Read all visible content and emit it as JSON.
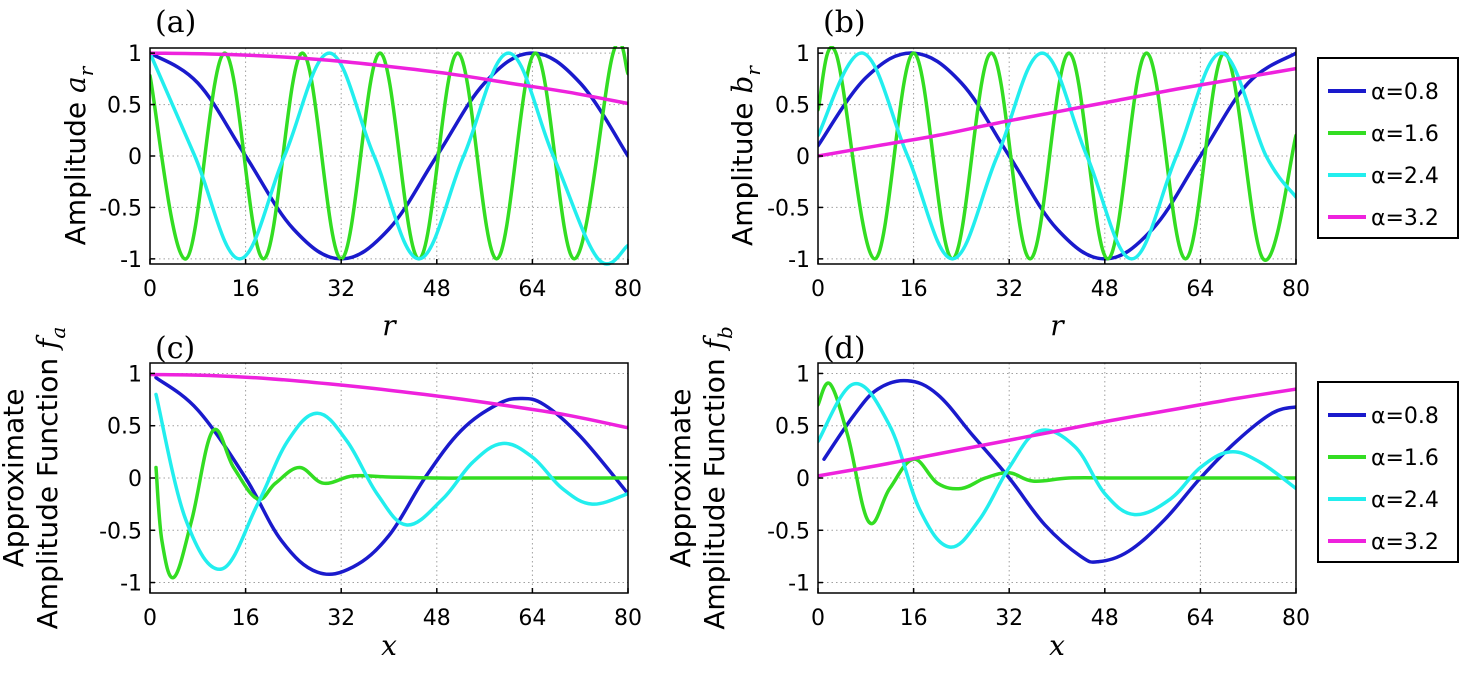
{
  "legend": {
    "entries": [
      {
        "label": "α=0.8",
        "color": "#1a1acc"
      },
      {
        "label": "α=1.6",
        "color": "#33dd22"
      },
      {
        "label": "α=2.4",
        "color": "#22eeee"
      },
      {
        "label": "α=3.2",
        "color": "#ee22dd"
      }
    ]
  },
  "chart_data": [
    {
      "id": "a",
      "type": "line",
      "panel_label": "(a)",
      "ylabel_lines": [
        "Amplitude a_r"
      ],
      "xlabel": "r",
      "xlim": [
        0,
        80
      ],
      "ylim": [
        -1.05,
        1.05
      ],
      "xticks": [
        "0",
        "16",
        "32",
        "48",
        "64",
        "80"
      ],
      "yticks": [
        "1",
        "0.5",
        "0",
        "-0.5",
        "-1"
      ],
      "grid": true,
      "series": [
        {
          "name": "α=0.8",
          "x": [
            0,
            8,
            16,
            24,
            32,
            40,
            48,
            56,
            64,
            72,
            80
          ],
          "y": [
            1.0,
            0.71,
            0.0,
            -0.71,
            -1.0,
            -0.71,
            0.0,
            0.71,
            1.0,
            0.71,
            0.0
          ]
        },
        {
          "name": "α=1.6",
          "x": [
            0,
            6,
            12.5,
            19,
            25.5,
            32,
            38.5,
            45,
            51.5,
            58,
            64.5,
            71,
            77.5,
            80
          ],
          "y": [
            0.78,
            -1.0,
            1.0,
            -1.0,
            1.0,
            -1.0,
            1.0,
            -1.0,
            1.0,
            -1.0,
            1.0,
            -1.0,
            1.0,
            0.8
          ]
        },
        {
          "name": "α=2.4",
          "x": [
            0,
            7.5,
            15,
            22.5,
            30,
            37.5,
            45,
            52.5,
            60,
            67.5,
            75,
            80
          ],
          "y": [
            1.0,
            0.0,
            -1.0,
            0.0,
            1.0,
            0.0,
            -1.0,
            0.0,
            1.0,
            0.0,
            -1.0,
            -0.87
          ]
        },
        {
          "name": "α=3.2",
          "x": [
            0,
            10,
            20,
            30,
            40,
            50,
            60,
            70,
            80
          ],
          "y": [
            1.0,
            0.992,
            0.97,
            0.93,
            0.87,
            0.8,
            0.71,
            0.62,
            0.51
          ]
        }
      ]
    },
    {
      "id": "b",
      "type": "line",
      "panel_label": "(b)",
      "ylabel_lines": [
        "Amplitude b_r"
      ],
      "xlabel": "r",
      "xlim": [
        0,
        80
      ],
      "ylim": [
        -1.05,
        1.05
      ],
      "xticks": [
        "0",
        "16",
        "32",
        "48",
        "64",
        "80"
      ],
      "yticks": [
        "1",
        "0.5",
        "0",
        "-0.5",
        "-1"
      ],
      "grid": true,
      "series": [
        {
          "name": "α=0.8",
          "x": [
            0,
            8,
            16,
            24,
            32,
            40,
            48,
            56,
            64,
            72,
            80
          ],
          "y": [
            0.1,
            0.76,
            1.0,
            0.71,
            0.0,
            -0.71,
            -1.0,
            -0.71,
            0.0,
            0.71,
            1.0
          ]
        },
        {
          "name": "α=1.6",
          "x": [
            0,
            3,
            9.5,
            16,
            22.5,
            29,
            35.5,
            42,
            48.5,
            55,
            61.5,
            68,
            74.5,
            80
          ],
          "y": [
            0.45,
            1.0,
            -1.0,
            1.0,
            -1.0,
            1.0,
            -1.0,
            1.0,
            -1.0,
            1.0,
            -1.0,
            1.0,
            -1.0,
            0.2
          ]
        },
        {
          "name": "α=2.4",
          "x": [
            0,
            7.5,
            15,
            22.5,
            30,
            37.5,
            45,
            52.5,
            60,
            67.5,
            75,
            80
          ],
          "y": [
            0.2,
            1.0,
            0.0,
            -1.0,
            0.0,
            1.0,
            0.0,
            -1.0,
            0.0,
            1.0,
            0.0,
            -0.4
          ]
        },
        {
          "name": "α=3.2",
          "x": [
            0,
            10,
            20,
            30,
            40,
            50,
            60,
            70,
            80
          ],
          "y": [
            0.0,
            0.1,
            0.2,
            0.32,
            0.43,
            0.54,
            0.65,
            0.75,
            0.85
          ]
        }
      ]
    },
    {
      "id": "c",
      "type": "line",
      "panel_label": "(c)",
      "ylabel_lines": [
        "Approximate",
        "Amplitude Function f_a"
      ],
      "xlabel": "x",
      "xlim": [
        0,
        80
      ],
      "ylim": [
        -1.1,
        1.1
      ],
      "xticks": [
        "0",
        "16",
        "32",
        "48",
        "64",
        "80"
      ],
      "yticks": [
        "1",
        "0.5",
        "0",
        "-0.5",
        "-1"
      ],
      "grid": true,
      "series": [
        {
          "name": "α=0.8",
          "x": [
            1,
            8,
            16,
            22,
            28,
            34,
            40,
            46,
            52,
            58,
            62,
            66,
            72,
            80
          ],
          "y": [
            0.96,
            0.65,
            0.0,
            -0.6,
            -0.9,
            -0.85,
            -0.55,
            0.0,
            0.45,
            0.7,
            0.76,
            0.7,
            0.4,
            -0.15
          ]
        },
        {
          "name": "α=1.6",
          "x": [
            1,
            2,
            4,
            7,
            10.5,
            14,
            18,
            21,
            25,
            29,
            34,
            40,
            48,
            56,
            64,
            72,
            80
          ],
          "y": [
            0.1,
            -0.6,
            -0.95,
            -0.4,
            0.45,
            0.1,
            -0.2,
            -0.05,
            0.1,
            -0.05,
            0.02,
            0.01,
            0.0,
            0.0,
            0.0,
            0.0,
            0.0
          ]
        },
        {
          "name": "α=2.4",
          "x": [
            1,
            6,
            12,
            18,
            23,
            28,
            33,
            38,
            43,
            49,
            54,
            59,
            64,
            69,
            74,
            80
          ],
          "y": [
            0.8,
            -0.4,
            -0.87,
            -0.25,
            0.35,
            0.62,
            0.35,
            -0.15,
            -0.45,
            -0.2,
            0.15,
            0.33,
            0.2,
            -0.1,
            -0.25,
            -0.15
          ]
        },
        {
          "name": "α=3.2",
          "x": [
            0,
            10,
            20,
            30,
            40,
            50,
            60,
            70,
            80
          ],
          "y": [
            0.99,
            0.98,
            0.95,
            0.9,
            0.84,
            0.77,
            0.69,
            0.6,
            0.48
          ]
        }
      ]
    },
    {
      "id": "d",
      "type": "line",
      "panel_label": "(d)",
      "ylabel_lines": [
        "Approximate",
        "Amplitude Function f_b"
      ],
      "xlabel": "x",
      "xlim": [
        0,
        80
      ],
      "ylim": [
        -1.1,
        1.1
      ],
      "xticks": [
        "0",
        "16",
        "32",
        "48",
        "64",
        "80"
      ],
      "yticks": [
        "1",
        "0.5",
        "0",
        "-0.5",
        "-1"
      ],
      "grid": true,
      "series": [
        {
          "name": "α=0.8",
          "x": [
            1,
            6,
            10,
            15,
            20,
            26,
            32,
            38,
            44,
            47,
            52,
            58,
            64,
            70,
            76,
            80
          ],
          "y": [
            0.18,
            0.6,
            0.85,
            0.93,
            0.8,
            0.4,
            0.0,
            -0.45,
            -0.75,
            -0.8,
            -0.7,
            -0.4,
            0.0,
            0.35,
            0.62,
            0.68
          ]
        },
        {
          "name": "α=1.6",
          "x": [
            0,
            2,
            5,
            8.5,
            12,
            16,
            20,
            24,
            28,
            32,
            36,
            42,
            50,
            60,
            70,
            80
          ],
          "y": [
            0.7,
            0.9,
            0.4,
            -0.42,
            -0.1,
            0.18,
            -0.05,
            -0.1,
            0.0,
            0.05,
            -0.03,
            0.0,
            0.0,
            0.0,
            0.0,
            0.0
          ]
        },
        {
          "name": "α=2.4",
          "x": [
            0,
            6,
            12,
            17,
            22,
            27,
            32,
            37,
            43,
            48,
            53,
            59,
            64,
            69,
            74,
            80
          ],
          "y": [
            0.35,
            0.9,
            0.5,
            -0.3,
            -0.66,
            -0.4,
            0.1,
            0.45,
            0.3,
            -0.15,
            -0.35,
            -0.2,
            0.1,
            0.25,
            0.15,
            -0.1
          ]
        },
        {
          "name": "α=3.2",
          "x": [
            0,
            10,
            20,
            30,
            40,
            50,
            60,
            70,
            80
          ],
          "y": [
            0.02,
            0.12,
            0.23,
            0.34,
            0.45,
            0.56,
            0.66,
            0.76,
            0.85
          ]
        }
      ]
    }
  ]
}
